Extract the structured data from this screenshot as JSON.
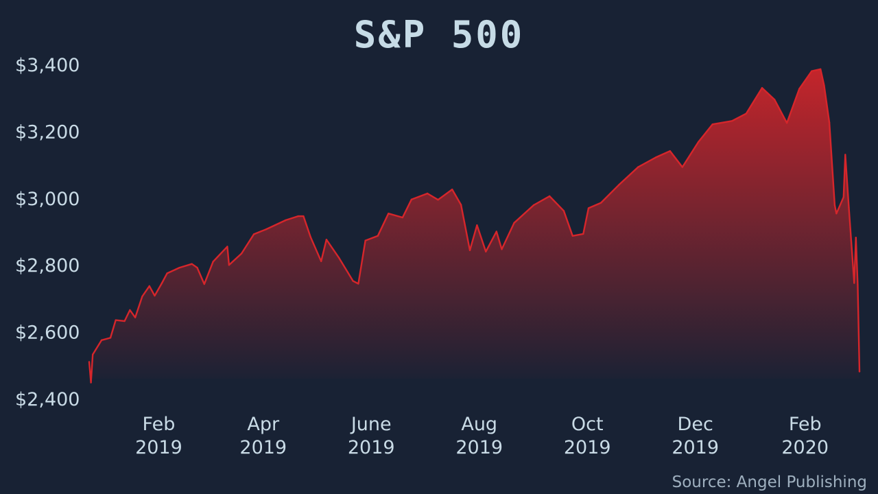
{
  "chart_data": {
    "type": "area",
    "title": "S&P 500",
    "source_note": "Source: Angel Publishing",
    "xlabel": "",
    "ylabel": "",
    "x_range": [
      "2019-01-02",
      "2020-03-12"
    ],
    "ylim": [
      2400,
      3400
    ],
    "y_ticks": [
      {
        "value": 3400,
        "label": "$3,400"
      },
      {
        "value": 3200,
        "label": "$3,200"
      },
      {
        "value": 3000,
        "label": "$3,000"
      },
      {
        "value": 2800,
        "label": "$2,800"
      },
      {
        "value": 2600,
        "label": "$2,600"
      },
      {
        "value": 2400,
        "label": "$2,400"
      }
    ],
    "x_ticks": [
      {
        "date": "2019-02-01",
        "month": "Feb",
        "year": "2019"
      },
      {
        "date": "2019-04-01",
        "month": "Apr",
        "year": "2019"
      },
      {
        "date": "2019-06-01",
        "month": "June",
        "year": "2019"
      },
      {
        "date": "2019-08-01",
        "month": "Aug",
        "year": "2019"
      },
      {
        "date": "2019-10-01",
        "month": "Oct",
        "year": "2019"
      },
      {
        "date": "2019-12-01",
        "month": "Dec",
        "year": "2019"
      },
      {
        "date": "2020-02-01",
        "month": "Feb",
        "year": "2020"
      }
    ],
    "grid": false,
    "legend": "none",
    "colors": {
      "background": "#182234",
      "line": "#d6262b",
      "fill_top": "#c4252b",
      "fill_bottom": "#1a2234",
      "text": "#c9dbe6",
      "title": "#c6dbe6",
      "source": "#9fb0bf"
    },
    "series": [
      {
        "points": [
          [
            "2019-01-02",
            2510
          ],
          [
            "2019-01-03",
            2448
          ],
          [
            "2019-01-04",
            2532
          ],
          [
            "2019-01-09",
            2575
          ],
          [
            "2019-01-14",
            2582
          ],
          [
            "2019-01-17",
            2635
          ],
          [
            "2019-01-22",
            2632
          ],
          [
            "2019-01-25",
            2665
          ],
          [
            "2019-01-28",
            2643
          ],
          [
            "2019-02-01",
            2706
          ],
          [
            "2019-02-05",
            2737
          ],
          [
            "2019-02-08",
            2708
          ],
          [
            "2019-02-12",
            2745
          ],
          [
            "2019-02-15",
            2775
          ],
          [
            "2019-02-22",
            2792
          ],
          [
            "2019-03-01",
            2803
          ],
          [
            "2019-03-04",
            2792
          ],
          [
            "2019-03-08",
            2743
          ],
          [
            "2019-03-13",
            2810
          ],
          [
            "2019-03-21",
            2855
          ],
          [
            "2019-03-22",
            2800
          ],
          [
            "2019-03-29",
            2834
          ],
          [
            "2019-04-05",
            2892
          ],
          [
            "2019-04-12",
            2907
          ],
          [
            "2019-04-23",
            2934
          ],
          [
            "2019-04-30",
            2946
          ],
          [
            "2019-05-03",
            2946
          ],
          [
            "2019-05-07",
            2884
          ],
          [
            "2019-05-13",
            2811
          ],
          [
            "2019-05-16",
            2876
          ],
          [
            "2019-05-23",
            2822
          ],
          [
            "2019-05-31",
            2752
          ],
          [
            "2019-06-03",
            2744
          ],
          [
            "2019-06-07",
            2873
          ],
          [
            "2019-06-14",
            2887
          ],
          [
            "2019-06-20",
            2954
          ],
          [
            "2019-06-28",
            2942
          ],
          [
            "2019-07-03",
            2996
          ],
          [
            "2019-07-12",
            3014
          ],
          [
            "2019-07-18",
            2995
          ],
          [
            "2019-07-26",
            3026
          ],
          [
            "2019-07-31",
            2980
          ],
          [
            "2019-08-05",
            2844
          ],
          [
            "2019-08-09",
            2919
          ],
          [
            "2019-08-14",
            2840
          ],
          [
            "2019-08-20",
            2900
          ],
          [
            "2019-08-23",
            2847
          ],
          [
            "2019-08-30",
            2926
          ],
          [
            "2019-09-10",
            2979
          ],
          [
            "2019-09-19",
            3006
          ],
          [
            "2019-09-27",
            2962
          ],
          [
            "2019-10-02",
            2887
          ],
          [
            "2019-10-08",
            2893
          ],
          [
            "2019-10-11",
            2970
          ],
          [
            "2019-10-18",
            2986
          ],
          [
            "2019-10-28",
            3039
          ],
          [
            "2019-11-08",
            3093
          ],
          [
            "2019-11-18",
            3122
          ],
          [
            "2019-11-26",
            3141
          ],
          [
            "2019-12-03",
            3093
          ],
          [
            "2019-12-12",
            3168
          ],
          [
            "2019-12-20",
            3221
          ],
          [
            "2019-12-31",
            3231
          ],
          [
            "2020-01-08",
            3253
          ],
          [
            "2020-01-17",
            3330
          ],
          [
            "2020-01-24",
            3295
          ],
          [
            "2020-01-31",
            3225
          ],
          [
            "2020-02-07",
            3327
          ],
          [
            "2020-02-14",
            3380
          ],
          [
            "2020-02-19",
            3386
          ],
          [
            "2020-02-21",
            3338
          ],
          [
            "2020-02-24",
            3226
          ],
          [
            "2020-02-27",
            2979
          ],
          [
            "2020-02-28",
            2954
          ],
          [
            "2020-03-03",
            3003
          ],
          [
            "2020-03-04",
            3130
          ],
          [
            "2020-03-06",
            2972
          ],
          [
            "2020-03-09",
            2746
          ],
          [
            "2020-03-10",
            2882
          ],
          [
            "2020-03-11",
            2741
          ],
          [
            "2020-03-12",
            2481
          ]
        ]
      }
    ]
  }
}
